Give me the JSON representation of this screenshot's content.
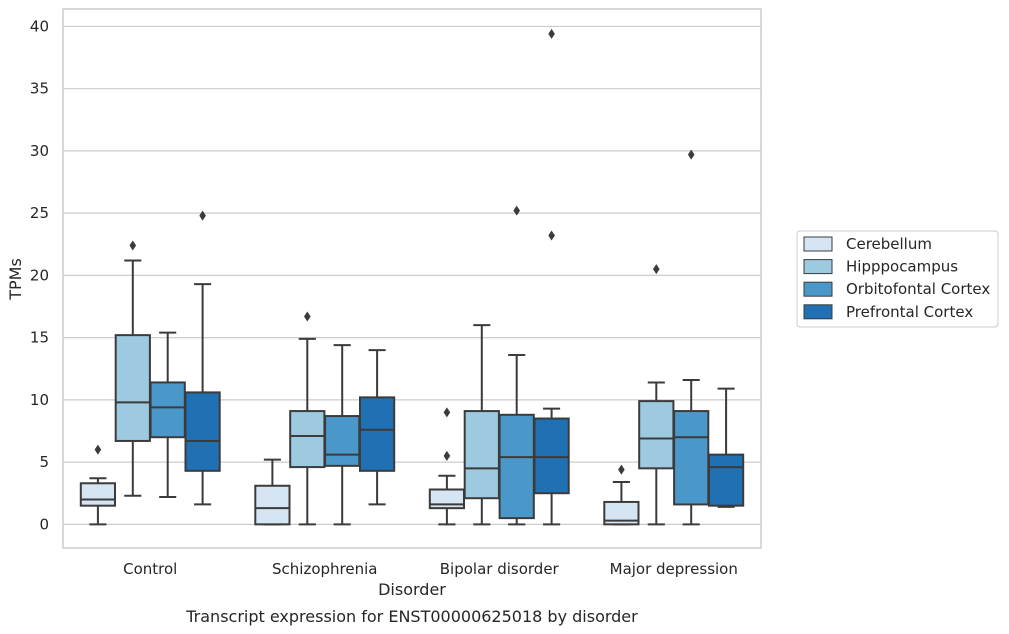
{
  "chart_data": {
    "type": "box",
    "caption": "Transcript expression for ENST00000625018 by disorder",
    "xlabel": "Disorder",
    "ylabel": "TPMs",
    "ylim": [
      -1.9,
      41.4
    ],
    "yticks": [
      0,
      5,
      10,
      15,
      20,
      25,
      30,
      35,
      40
    ],
    "grid": "horizontal",
    "legend_position": "right",
    "categories": [
      "Control",
      "Schizophrenia",
      "Bipolar disorder",
      "Major depression"
    ],
    "series": [
      {
        "name": "Cerebellum",
        "color": "#d6e5f3",
        "boxes": [
          {
            "whisker_low": 0.0,
            "q1": 1.5,
            "median": 2.0,
            "q3": 3.3,
            "whisker_high": 3.7,
            "outliers": [
              6.0
            ]
          },
          {
            "whisker_low": 0.0,
            "q1": 0.0,
            "median": 1.3,
            "q3": 3.1,
            "whisker_high": 5.2,
            "outliers": []
          },
          {
            "whisker_low": 0.0,
            "q1": 1.3,
            "median": 1.6,
            "q3": 2.8,
            "whisker_high": 3.9,
            "outliers": [
              5.5,
              9.0
            ]
          },
          {
            "whisker_low": 0.0,
            "q1": 0.0,
            "median": 0.3,
            "q3": 1.8,
            "whisker_high": 3.4,
            "outliers": [
              4.4
            ]
          }
        ]
      },
      {
        "name": "Hipppocampus",
        "color": "#9dc9e1",
        "boxes": [
          {
            "whisker_low": 2.3,
            "q1": 6.7,
            "median": 9.8,
            "q3": 15.2,
            "whisker_high": 21.2,
            "outliers": [
              22.4
            ]
          },
          {
            "whisker_low": 0.0,
            "q1": 4.6,
            "median": 7.1,
            "q3": 9.1,
            "whisker_high": 14.9,
            "outliers": [
              16.7
            ]
          },
          {
            "whisker_low": 0.0,
            "q1": 2.1,
            "median": 4.5,
            "q3": 9.1,
            "whisker_high": 16.0,
            "outliers": []
          },
          {
            "whisker_low": 0.0,
            "q1": 4.5,
            "median": 6.9,
            "q3": 9.9,
            "whisker_high": 11.4,
            "outliers": [
              20.5
            ]
          }
        ]
      },
      {
        "name": "Orbitofontal Cortex",
        "color": "#4a98c9",
        "boxes": [
          {
            "whisker_low": 2.2,
            "q1": 7.0,
            "median": 9.4,
            "q3": 11.4,
            "whisker_high": 15.4,
            "outliers": []
          },
          {
            "whisker_low": 0.0,
            "q1": 4.7,
            "median": 5.6,
            "q3": 8.7,
            "whisker_high": 14.4,
            "outliers": []
          },
          {
            "whisker_low": 0.0,
            "q1": 0.5,
            "median": 5.4,
            "q3": 8.8,
            "whisker_high": 13.6,
            "outliers": [
              25.2
            ]
          },
          {
            "whisker_low": 0.0,
            "q1": 1.6,
            "median": 7.0,
            "q3": 9.1,
            "whisker_high": 11.6,
            "outliers": [
              29.7
            ]
          }
        ]
      },
      {
        "name": "Prefrontal Cortex",
        "color": "#2070b4",
        "boxes": [
          {
            "whisker_low": 1.6,
            "q1": 4.3,
            "median": 6.7,
            "q3": 10.6,
            "whisker_high": 19.3,
            "outliers": [
              24.8
            ]
          },
          {
            "whisker_low": 1.6,
            "q1": 4.3,
            "median": 7.6,
            "q3": 10.2,
            "whisker_high": 14.0,
            "outliers": []
          },
          {
            "whisker_low": 0.0,
            "q1": 2.5,
            "median": 5.4,
            "q3": 8.5,
            "whisker_high": 9.3,
            "outliers": [
              23.2,
              39.4
            ]
          },
          {
            "whisker_low": 1.4,
            "q1": 1.5,
            "median": 4.6,
            "q3": 5.6,
            "whisker_high": 10.9,
            "outliers": []
          }
        ]
      }
    ]
  }
}
